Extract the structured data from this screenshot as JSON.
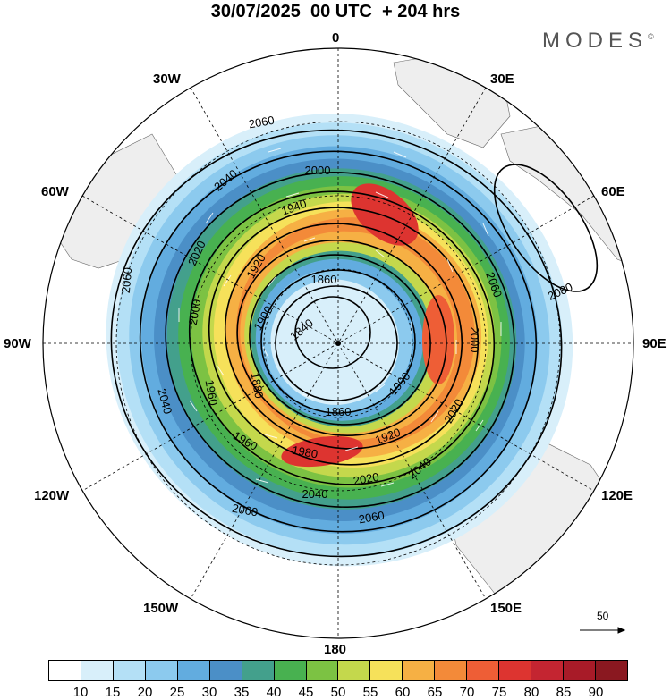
{
  "header": {
    "title": "30/07/2025  00 UTC  + 204 hrs",
    "brand": "MODES",
    "brand_mark": "©"
  },
  "longitudes": {
    "n0": "0",
    "e30": "30E",
    "e60": "60E",
    "e90": "90E",
    "e120": "120E",
    "e150": "150E",
    "s180": "180",
    "w150": "150W",
    "w120": "120W",
    "w90": "90W",
    "w60": "60W",
    "w30": "30W"
  },
  "contours": {
    "c1840": "1840",
    "c1860a": "1860",
    "c1860b": "1860",
    "c1880": "1880",
    "c1900a": "1900",
    "c1900b": "1900",
    "c1920a": "1920",
    "c1920b": "1920",
    "c1940": "1940",
    "c1960a": "1960",
    "c1960b": "1960",
    "c1980": "1980",
    "c2000a": "2000",
    "c2000b": "2000",
    "c2000c": "2000",
    "c2020a": "2020",
    "c2020b": "2020",
    "c2020c": "2020",
    "c2040a": "2040",
    "c2040b": "2040",
    "c2040c": "2040",
    "c2040d": "2040",
    "c2060a": "2060",
    "c2060b": "2060",
    "c2060c": "2060",
    "c2060d": "2060",
    "c2060e": "2060",
    "c2080": "2080"
  },
  "legend": {
    "vector_ref": "50",
    "labels": [
      "10",
      "15",
      "20",
      "25",
      "30",
      "35",
      "40",
      "45",
      "50",
      "55",
      "60",
      "65",
      "70",
      "75",
      "80",
      "85",
      "90"
    ],
    "colors": [
      "#ffffff",
      "#d8effa",
      "#b4e0f6",
      "#8ccaee",
      "#62acdf",
      "#4b8fc7",
      "#43a08c",
      "#48b150",
      "#7cc243",
      "#c4d84c",
      "#f6e15a",
      "#f6b044",
      "#f38a39",
      "#ee5e36",
      "#dd3430",
      "#c42531",
      "#a81b28",
      "#8a1820"
    ]
  }
}
